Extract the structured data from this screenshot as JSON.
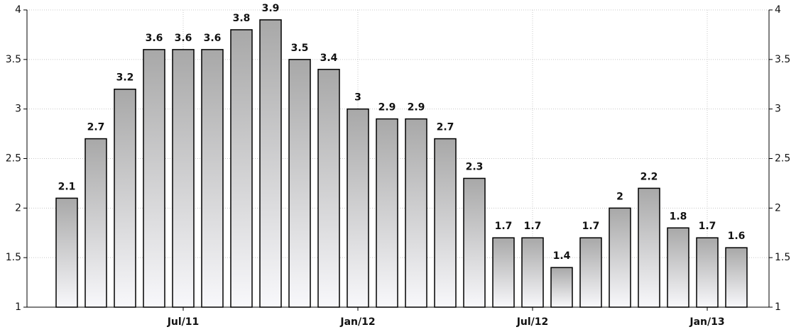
{
  "chart_data": {
    "type": "bar",
    "categories": [
      null,
      null,
      null,
      null,
      "Jul/11",
      null,
      null,
      null,
      null,
      null,
      "Jan/12",
      null,
      null,
      null,
      null,
      null,
      "Jul/12",
      null,
      null,
      null,
      null,
      null,
      "Jan/13",
      null
    ],
    "values": [
      2.1,
      2.7,
      3.2,
      3.6,
      3.6,
      3.6,
      3.8,
      3.9,
      3.5,
      3.4,
      3,
      2.9,
      2.9,
      2.7,
      2.3,
      1.7,
      1.7,
      1.4,
      1.7,
      2,
      2.2,
      1.8,
      1.7,
      1.6
    ],
    "color": "#a8a8a8",
    "ylim": [
      1,
      4
    ],
    "yticks": [
      1,
      1.5,
      2,
      2.5,
      3,
      3.5,
      4
    ],
    "grid": true,
    "right_axis": true
  }
}
